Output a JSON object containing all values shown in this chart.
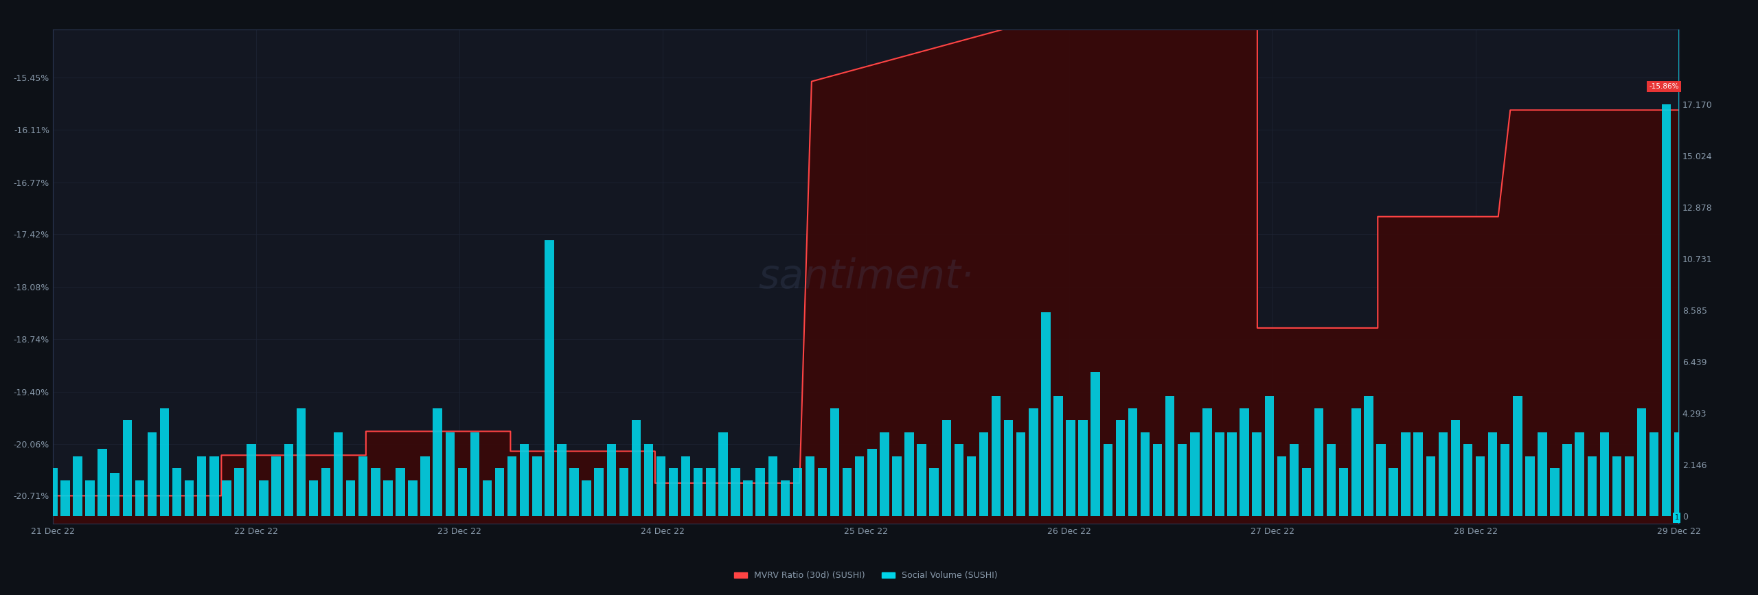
{
  "bg_color": "#0d1117",
  "plot_bg_color": "#131722",
  "grid_color": "#1e2535",
  "bar_color": "#00d4e8",
  "line_color": "#ff4444",
  "fill_color": "#3a0808",
  "text_color": "#8899aa",
  "left_yticks": [
    -20.71,
    -20.06,
    -19.4,
    -18.74,
    -18.08,
    -17.42,
    -16.77,
    -16.11,
    -15.45
  ],
  "right_yticks": [
    0,
    2.146,
    4.293,
    6.439,
    8.585,
    10.731,
    12.878,
    15.024,
    17.17
  ],
  "xtick_labels": [
    "21 Dec 22",
    "22 Dec 22",
    "23 Dec 22",
    "24 Dec 22",
    "25 Dec 22",
    "26 Dec 22",
    "27 Dec 22",
    "28 Dec 22",
    "29 Dec 22"
  ],
  "mvrv_step_data": [
    [
      0,
      -20.71
    ],
    [
      14,
      -20.71
    ],
    [
      14,
      -20.2
    ],
    [
      26,
      -20.2
    ],
    [
      26,
      -19.9
    ],
    [
      38,
      -19.9
    ],
    [
      38,
      -20.15
    ],
    [
      50,
      -20.15
    ],
    [
      50,
      -20.55
    ],
    [
      62,
      -20.55
    ],
    [
      63,
      -15.5
    ],
    [
      80,
      -14.8
    ],
    [
      94,
      -14.8
    ],
    [
      94,
      -14.5
    ],
    [
      100,
      -14.5
    ],
    [
      100,
      -18.6
    ],
    [
      110,
      -18.6
    ],
    [
      110,
      -17.2
    ],
    [
      120,
      -17.2
    ],
    [
      121,
      -15.86
    ],
    [
      135,
      -15.86
    ]
  ],
  "bar_heights": [
    2.0,
    1.5,
    2.5,
    1.5,
    2.8,
    1.8,
    4.0,
    1.5,
    3.5,
    4.5,
    2.0,
    1.5,
    2.5,
    2.5,
    1.5,
    2.0,
    3.0,
    1.5,
    2.5,
    3.0,
    4.5,
    1.5,
    2.0,
    3.5,
    1.5,
    2.5,
    2.0,
    1.5,
    2.0,
    1.5,
    2.5,
    4.5,
    3.5,
    2.0,
    3.5,
    1.5,
    2.0,
    2.5,
    3.0,
    2.5,
    11.5,
    3.0,
    2.0,
    1.5,
    2.0,
    3.0,
    2.0,
    4.0,
    3.0,
    2.5,
    2.0,
    2.5,
    2.0,
    2.0,
    3.5,
    2.0,
    1.5,
    2.0,
    2.5,
    1.5,
    2.0,
    2.5,
    2.0,
    4.5,
    2.0,
    2.5,
    2.8,
    3.5,
    2.5,
    3.5,
    3.0,
    2.0,
    4.0,
    3.0,
    2.5,
    3.5,
    5.0,
    4.0,
    3.5,
    4.5,
    8.5,
    5.0,
    4.0,
    4.0,
    6.0,
    3.0,
    4.0,
    4.5,
    3.5,
    3.0,
    5.0,
    3.0,
    3.5,
    4.5,
    3.5,
    3.5,
    4.5,
    3.5,
    5.0,
    2.5,
    3.0,
    2.0,
    4.5,
    3.0,
    2.0,
    4.5,
    5.0,
    3.0,
    2.0,
    3.5,
    3.5,
    2.5,
    3.5,
    4.0,
    3.0,
    2.5,
    3.5,
    3.0,
    5.0,
    2.5,
    3.5,
    2.0,
    3.0,
    3.5,
    2.5,
    3.5,
    2.5,
    2.5,
    4.5,
    3.5,
    17.17,
    3.5
  ],
  "current_value_label": "-15.86%",
  "legend_items": [
    {
      "label": "MVRV Ratio (30d) (SUSHI)",
      "color": "#ff4444"
    },
    {
      "label": "Social Volume (SUSHI)",
      "color": "#00d4e8"
    }
  ]
}
